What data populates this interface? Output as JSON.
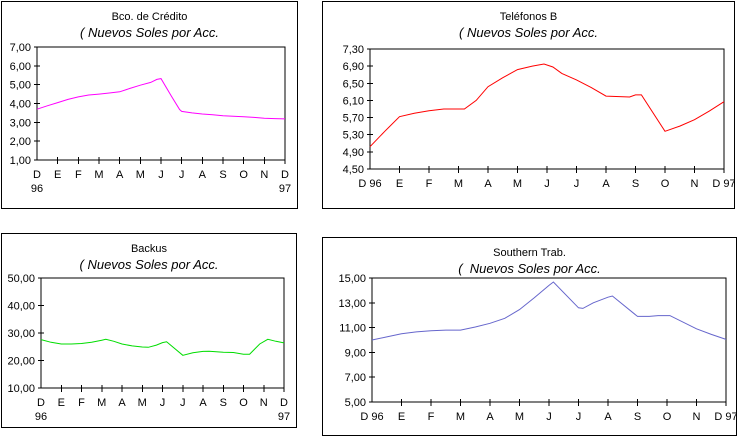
{
  "page": {
    "background": "#FFFFFF"
  },
  "chart_data": [
    {
      "type": "line",
      "title": "Bco. de Crédito",
      "subtitle": "( Nuevos Soles por Acc.",
      "line_color": "#FF00FF",
      "xlabel": "",
      "ylabel": "Nuevos Soles por Acción",
      "ylim": [
        1.0,
        7.0
      ],
      "y_ticks": [
        7,
        6,
        5,
        4,
        3,
        2,
        1
      ],
      "y_tick_labels": [
        "7,00",
        "6,00",
        "5,00",
        "4,00",
        "3,00",
        "2,00",
        "1,00"
      ],
      "x_tick_labels": [
        "D",
        "E",
        "F",
        "M",
        "A",
        "M",
        "J",
        "J",
        "A",
        "S",
        "O",
        "N",
        "D"
      ],
      "x_years_below": {
        "left": "96",
        "right": "97"
      },
      "categories": [
        "D 96",
        "E",
        "F",
        "M",
        "A",
        "M",
        "J",
        "J",
        "A",
        "S",
        "O",
        "N",
        "D 97"
      ],
      "values": [
        3.7,
        4.05,
        4.35,
        4.5,
        4.62,
        4.97,
        5.32,
        3.58,
        3.44,
        3.35,
        3.3,
        3.22,
        3.18
      ],
      "points": [
        [
          0,
          3.7
        ],
        [
          0.5,
          3.88
        ],
        [
          1,
          4.05
        ],
        [
          1.5,
          4.22
        ],
        [
          2,
          4.35
        ],
        [
          2.5,
          4.45
        ],
        [
          3,
          4.5
        ],
        [
          3.5,
          4.56
        ],
        [
          4,
          4.62
        ],
        [
          4.5,
          4.8
        ],
        [
          5,
          4.97
        ],
        [
          5.5,
          5.12
        ],
        [
          5.8,
          5.28
        ],
        [
          6,
          5.32
        ],
        [
          6.5,
          4.4
        ],
        [
          6.9,
          3.68
        ],
        [
          7,
          3.58
        ],
        [
          7.5,
          3.5
        ],
        [
          8,
          3.44
        ],
        [
          8.5,
          3.4
        ],
        [
          9,
          3.35
        ],
        [
          9.5,
          3.32
        ],
        [
          10,
          3.3
        ],
        [
          10.5,
          3.26
        ],
        [
          11,
          3.22
        ],
        [
          11.5,
          3.2
        ],
        [
          12,
          3.18
        ]
      ],
      "grid": "off",
      "legend": "none"
    },
    {
      "type": "line",
      "title": "Teléfonos B",
      "subtitle": "( Nuevos Soles por Acc.",
      "line_color": "#FF0000",
      "xlabel": "",
      "ylabel": "Nuevos Soles por Acción",
      "ylim": [
        4.5,
        7.3
      ],
      "y_ticks": [
        7.3,
        6.9,
        6.5,
        6.1,
        5.7,
        5.3,
        4.9,
        4.5
      ],
      "y_tick_labels": [
        "7,30",
        "6,90",
        "6,50",
        "6,10",
        "5,70",
        "5,30",
        "4,90",
        "4,50"
      ],
      "x_tick_labels": [
        "D 96",
        "E",
        "F",
        "M",
        "A",
        "M",
        "J",
        "J",
        "A",
        "S",
        "O",
        "N",
        "D 97"
      ],
      "x_years_below": null,
      "categories": [
        "D 96",
        "E",
        "F",
        "M",
        "A",
        "M",
        "J",
        "J",
        "A",
        "S",
        "O",
        "N",
        "D 97"
      ],
      "values": [
        5.02,
        5.72,
        5.86,
        5.9,
        6.42,
        6.82,
        6.93,
        6.58,
        6.2,
        6.23,
        5.38,
        5.65,
        6.07
      ],
      "points": [
        [
          0,
          5.02
        ],
        [
          0.5,
          5.38
        ],
        [
          1,
          5.72
        ],
        [
          1.5,
          5.8
        ],
        [
          2,
          5.86
        ],
        [
          2.5,
          5.9
        ],
        [
          3.2,
          5.9
        ],
        [
          3.6,
          6.1
        ],
        [
          4,
          6.42
        ],
        [
          4.5,
          6.63
        ],
        [
          5,
          6.82
        ],
        [
          5.5,
          6.9
        ],
        [
          5.9,
          6.95
        ],
        [
          6.2,
          6.88
        ],
        [
          6.5,
          6.73
        ],
        [
          7,
          6.58
        ],
        [
          7.5,
          6.4
        ],
        [
          8,
          6.2
        ],
        [
          8.8,
          6.18
        ],
        [
          9,
          6.23
        ],
        [
          9.2,
          6.23
        ],
        [
          10,
          5.38
        ],
        [
          10.5,
          5.5
        ],
        [
          11,
          5.65
        ],
        [
          11.5,
          5.85
        ],
        [
          12,
          6.07
        ]
      ],
      "grid": "off",
      "legend": "none"
    },
    {
      "type": "line",
      "title": "Backus",
      "subtitle": "( Nuevos Soles por Acc.",
      "line_color": "#00DD00",
      "xlabel": "",
      "ylabel": "Nuevos Soles por Acción",
      "ylim": [
        10.0,
        50.0
      ],
      "y_ticks": [
        50,
        40,
        30,
        20,
        10
      ],
      "y_tick_labels": [
        "50,00",
        "40,00",
        "30,00",
        "20,00",
        "10,00"
      ],
      "x_tick_labels": [
        "D",
        "E",
        "F",
        "M",
        "A",
        "M",
        "J",
        "J",
        "A",
        "S",
        "O",
        "N",
        "D"
      ],
      "x_years_below": {
        "left": "96",
        "right": "97"
      },
      "categories": [
        "D 96",
        "E",
        "F",
        "M",
        "A",
        "M",
        "J",
        "J",
        "A",
        "S",
        "O",
        "N",
        "D 97"
      ],
      "values": [
        27.6,
        26.0,
        26.2,
        27.4,
        26.0,
        24.9,
        26.5,
        21.9,
        23.3,
        23.0,
        22.3,
        27.2,
        26.4
      ],
      "points": [
        [
          0,
          27.6
        ],
        [
          0.5,
          26.6
        ],
        [
          1,
          26.0
        ],
        [
          1.5,
          26.0
        ],
        [
          2,
          26.2
        ],
        [
          2.5,
          26.6
        ],
        [
          3,
          27.4
        ],
        [
          3.2,
          27.7
        ],
        [
          3.6,
          27.0
        ],
        [
          4,
          26.0
        ],
        [
          4.5,
          25.3
        ],
        [
          5,
          24.9
        ],
        [
          5.3,
          24.8
        ],
        [
          5.7,
          25.6
        ],
        [
          6,
          26.5
        ],
        [
          6.2,
          26.8
        ],
        [
          7,
          21.9
        ],
        [
          7.5,
          22.8
        ],
        [
          8,
          23.3
        ],
        [
          8.3,
          23.4
        ],
        [
          9,
          23.0
        ],
        [
          9.5,
          22.9
        ],
        [
          10,
          22.3
        ],
        [
          10.3,
          22.3
        ],
        [
          10.8,
          26.0
        ],
        [
          11.2,
          27.7
        ],
        [
          11.6,
          27.0
        ],
        [
          12,
          26.4
        ]
      ],
      "grid": "off",
      "legend": "none"
    },
    {
      "type": "line",
      "title": "Southern Trab.",
      "subtitle": "(  Nuevos Soles por Acc.",
      "line_color": "#6666CC",
      "xlabel": "",
      "ylabel": "Nuevos Soles por Acción",
      "ylim": [
        5.0,
        15.0
      ],
      "y_ticks": [
        15,
        13,
        11,
        9,
        7,
        5
      ],
      "y_tick_labels": [
        "15,00",
        "13,00",
        "11,00",
        "9,00",
        "7,00",
        "5,00"
      ],
      "x_tick_labels": [
        "D 96",
        "E",
        "F",
        "M",
        "A",
        "M",
        "J",
        "J",
        "A",
        "S",
        "O",
        "N",
        "D 97"
      ],
      "x_years_below": null,
      "categories": [
        "D 96",
        "E",
        "F",
        "M",
        "A",
        "M",
        "J",
        "J",
        "A",
        "S",
        "O",
        "N",
        "D 97"
      ],
      "values": [
        10.0,
        10.5,
        10.75,
        10.8,
        11.35,
        12.45,
        14.68,
        12.6,
        13.55,
        11.9,
        11.97,
        10.9,
        10.05
      ],
      "points": [
        [
          0,
          10.0
        ],
        [
          0.5,
          10.25
        ],
        [
          1,
          10.5
        ],
        [
          1.5,
          10.65
        ],
        [
          2,
          10.75
        ],
        [
          2.5,
          10.8
        ],
        [
          3,
          10.8
        ],
        [
          3.5,
          11.05
        ],
        [
          4,
          11.35
        ],
        [
          4.5,
          11.75
        ],
        [
          5,
          12.45
        ],
        [
          5.5,
          13.4
        ],
        [
          6,
          14.4
        ],
        [
          6.15,
          14.68
        ],
        [
          7,
          12.6
        ],
        [
          7.15,
          12.55
        ],
        [
          7.5,
          13.0
        ],
        [
          8,
          13.45
        ],
        [
          8.15,
          13.55
        ],
        [
          9,
          11.9
        ],
        [
          9.4,
          11.9
        ],
        [
          9.7,
          11.97
        ],
        [
          10.1,
          11.97
        ],
        [
          11,
          10.9
        ],
        [
          11.5,
          10.45
        ],
        [
          12,
          10.05
        ]
      ],
      "grid": "off",
      "legend": "none"
    }
  ]
}
